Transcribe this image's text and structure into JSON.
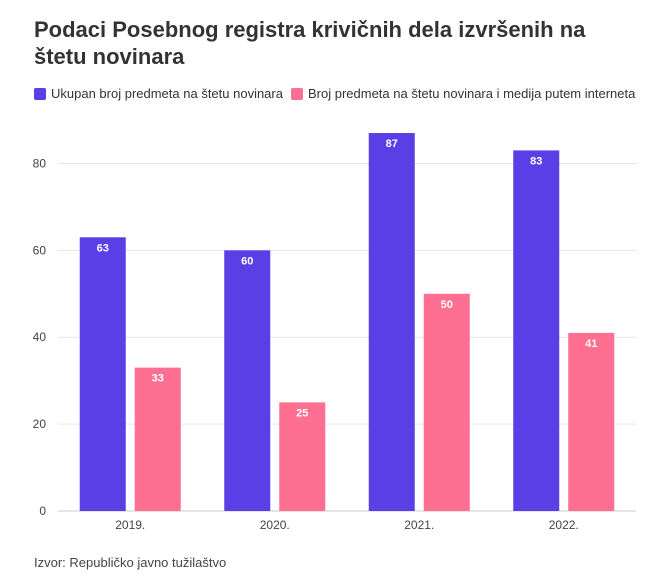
{
  "chart_data": {
    "type": "bar",
    "title": "Podaci Posebnog registra krivičnih dela izvršenih na štetu novinara",
    "categories": [
      "2019.",
      "2020.",
      "2021.",
      "2022."
    ],
    "series": [
      {
        "name": "Ukupan broj predmeta na štetu novinara",
        "values": [
          63,
          60,
          87,
          83
        ],
        "color": "#5a3ee6"
      },
      {
        "name": "Broj predmeta na štetu novinara i medija putem interneta",
        "values": [
          33,
          25,
          50,
          41
        ],
        "color": "#ff6f91"
      }
    ],
    "yticks": [
      0,
      20,
      40,
      60,
      80
    ],
    "ylim": [
      0,
      90
    ],
    "grid": true,
    "legend_position": "top-left",
    "xlabel": "",
    "ylabel": ""
  },
  "source": "Izvor: Republičko javno tužilaštvo"
}
